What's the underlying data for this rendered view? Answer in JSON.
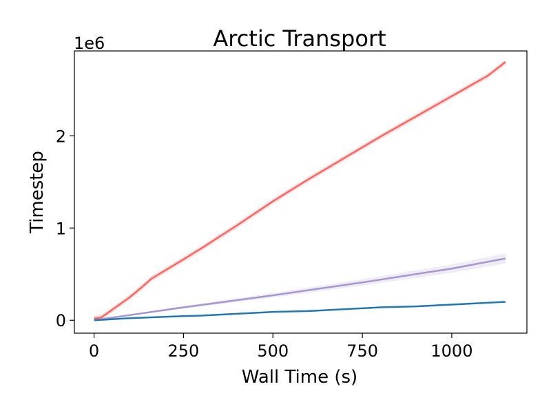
{
  "chart_data": {
    "type": "line",
    "title": "Arctic Transport",
    "xlabel": "Wall Time (s)",
    "ylabel": "Timestep",
    "y_scale_label": "1e6",
    "xlim": [
      -55,
      1210
    ],
    "ylim": [
      -140000,
      2920000
    ],
    "x_ticks": [
      0,
      250,
      500,
      750,
      1000
    ],
    "x_tick_labels": [
      "0",
      "250",
      "500",
      "750",
      "1000"
    ],
    "y_ticks": [
      0,
      1000000,
      2000000
    ],
    "y_tick_labels": [
      "0",
      "1",
      "2"
    ],
    "grid": false,
    "legend": "none",
    "series": [
      {
        "color": "#ff6361",
        "band": true,
        "x": [
          0,
          20,
          60,
          100,
          140,
          160,
          250,
          300,
          400,
          500,
          600,
          700,
          800,
          900,
          1000,
          1100,
          1150
        ],
        "y": [
          20000,
          30000,
          140000,
          250000,
          380000,
          450000,
          660000,
          780000,
          1030000,
          1290000,
          1530000,
          1760000,
          1990000,
          2210000,
          2430000,
          2650000,
          2800000
        ],
        "band_width": 30000
      },
      {
        "color": "#a696d0",
        "band": true,
        "x": [
          0,
          250,
          500,
          750,
          1000,
          1150
        ],
        "y": [
          0,
          140000,
          270000,
          410000,
          560000,
          670000
        ],
        "band_width_start": 5000,
        "band_width_end": 55000
      },
      {
        "color": "#1f77b4",
        "band": false,
        "x": [
          0,
          100,
          250,
          300,
          500,
          600,
          750,
          800,
          900,
          1000,
          1150
        ],
        "y": [
          0,
          22000,
          45000,
          50000,
          90000,
          100000,
          130000,
          140000,
          150000,
          170000,
          200000
        ]
      }
    ]
  }
}
